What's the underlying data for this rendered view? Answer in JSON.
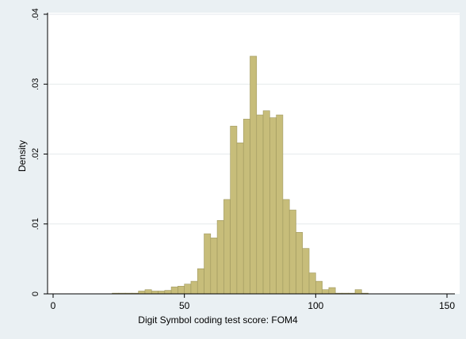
{
  "chart_data": {
    "type": "bar",
    "subtype": "histogram",
    "xlabel": "Digit Symbol coding test score: FOM4",
    "ylabel": "Density",
    "xlim": [
      0,
      150
    ],
    "ylim": [
      0,
      0.04
    ],
    "x_ticks": [
      0,
      50,
      100,
      150
    ],
    "y_ticks": [
      "0",
      ".01",
      ".02",
      ".03",
      ".04"
    ],
    "grid": true,
    "bin_width": 2.5,
    "bar_color": "#c7bd7a",
    "bar_edge_color": "#9f9860",
    "background_color": "#eaf0f3",
    "plot_background_color": "#ffffff",
    "bins": [
      {
        "x": 22.5,
        "value": 0.0001
      },
      {
        "x": 25.0,
        "value": 0.0001
      },
      {
        "x": 27.5,
        "value": 0.0001
      },
      {
        "x": 30.0,
        "value": 0.0001
      },
      {
        "x": 32.5,
        "value": 0.0004
      },
      {
        "x": 35.0,
        "value": 0.0006
      },
      {
        "x": 37.5,
        "value": 0.0004
      },
      {
        "x": 40.0,
        "value": 0.0004
      },
      {
        "x": 42.5,
        "value": 0.0005
      },
      {
        "x": 45.0,
        "value": 0.001
      },
      {
        "x": 47.5,
        "value": 0.0011
      },
      {
        "x": 50.0,
        "value": 0.0014
      },
      {
        "x": 52.5,
        "value": 0.0018
      },
      {
        "x": 55.0,
        "value": 0.0036
      },
      {
        "x": 57.5,
        "value": 0.0086
      },
      {
        "x": 60.0,
        "value": 0.008
      },
      {
        "x": 62.5,
        "value": 0.0105
      },
      {
        "x": 65.0,
        "value": 0.0135
      },
      {
        "x": 67.5,
        "value": 0.024
      },
      {
        "x": 70.0,
        "value": 0.0216
      },
      {
        "x": 72.5,
        "value": 0.025
      },
      {
        "x": 75.0,
        "value": 0.034
      },
      {
        "x": 77.5,
        "value": 0.0256
      },
      {
        "x": 80.0,
        "value": 0.0262
      },
      {
        "x": 82.5,
        "value": 0.0252
      },
      {
        "x": 85.0,
        "value": 0.0256
      },
      {
        "x": 87.5,
        "value": 0.0135
      },
      {
        "x": 90.0,
        "value": 0.012
      },
      {
        "x": 92.5,
        "value": 0.0088
      },
      {
        "x": 95.0,
        "value": 0.0065
      },
      {
        "x": 97.5,
        "value": 0.003
      },
      {
        "x": 100.0,
        "value": 0.0018
      },
      {
        "x": 102.5,
        "value": 0.0006
      },
      {
        "x": 105.0,
        "value": 0.0009
      },
      {
        "x": 107.5,
        "value": 0.0001
      },
      {
        "x": 110.0,
        "value": 0.0001
      },
      {
        "x": 112.5,
        "value": 0.0001
      },
      {
        "x": 115.0,
        "value": 0.0006
      },
      {
        "x": 117.5,
        "value": 0.0001
      }
    ]
  }
}
